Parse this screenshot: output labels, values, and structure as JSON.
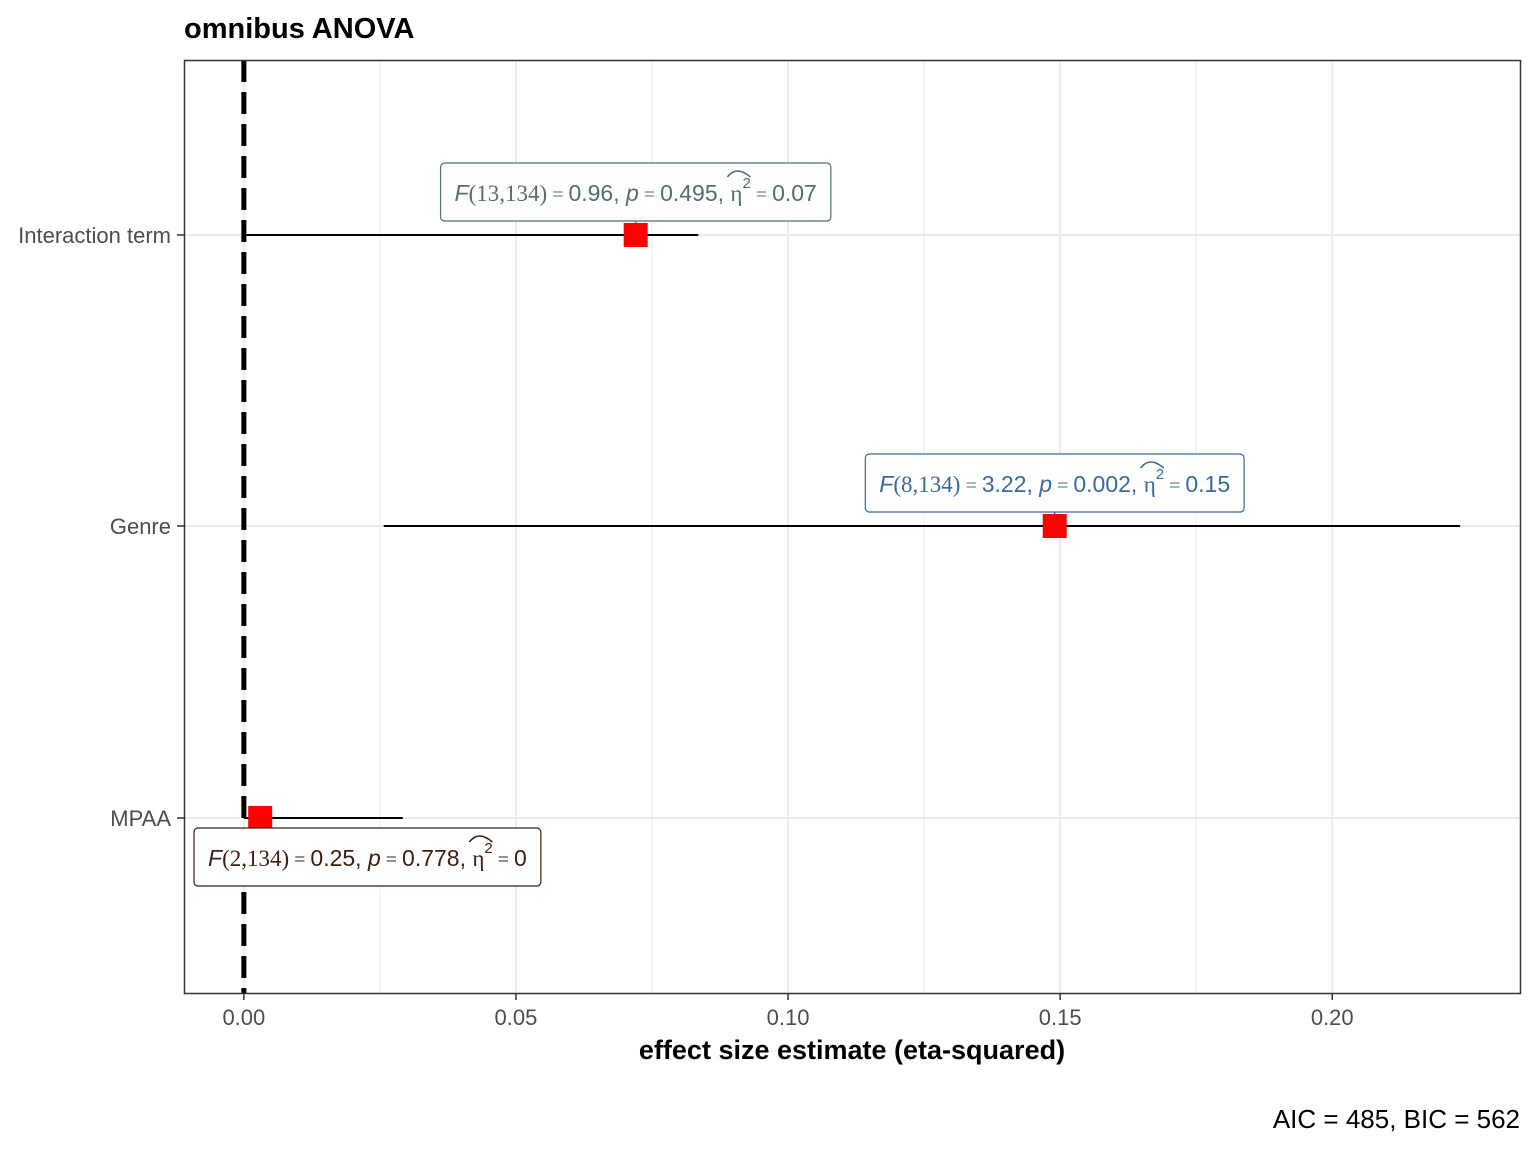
{
  "chart_data": {
    "type": "forest",
    "title": "omnibus ANOVA",
    "xlabel": "effect size estimate (eta-squared)",
    "ylabel": "",
    "xlim": [
      -0.011,
      0.2345
    ],
    "x_ticks": [
      0.0,
      0.05,
      0.1,
      0.15,
      0.2
    ],
    "x_tick_labels": [
      "0.00",
      "0.05",
      "0.10",
      "0.15",
      "0.20"
    ],
    "reference_line_x": 0,
    "grid": true,
    "terms": [
      {
        "name": "Interaction term",
        "estimate": 0.072,
        "ci_low": 0.0,
        "ci_high": 0.0835,
        "label_color": "#4f6f73",
        "label_position": "above",
        "label": {
          "f_df": "13,134",
          "f_value": "0.96",
          "p_value": "0.495",
          "eta_sq": "0.07"
        }
      },
      {
        "name": "Genre",
        "estimate": 0.149,
        "ci_low": 0.0257,
        "ci_high": 0.2235,
        "label_color": "#3a6a99",
        "label_position": "above",
        "label": {
          "f_df": "8,134",
          "f_value": "3.22",
          "p_value": "0.002",
          "eta_sq": "0.15"
        }
      },
      {
        "name": "MPAA",
        "estimate": 0.003,
        "ci_low": 0.0,
        "ci_high": 0.0292,
        "label_color": "#3d1d12",
        "label_position": "below",
        "label": {
          "f_df": "2,134",
          "f_value": "0.25",
          "p_value": "0.778",
          "eta_sq": "0"
        }
      }
    ],
    "caption": "AIC = 485, BIC = 562"
  },
  "colors": {
    "point": "#ff0000",
    "axis_text": "#4d4d4d",
    "grid": "#ebebeb",
    "panel_border": "#333333"
  }
}
